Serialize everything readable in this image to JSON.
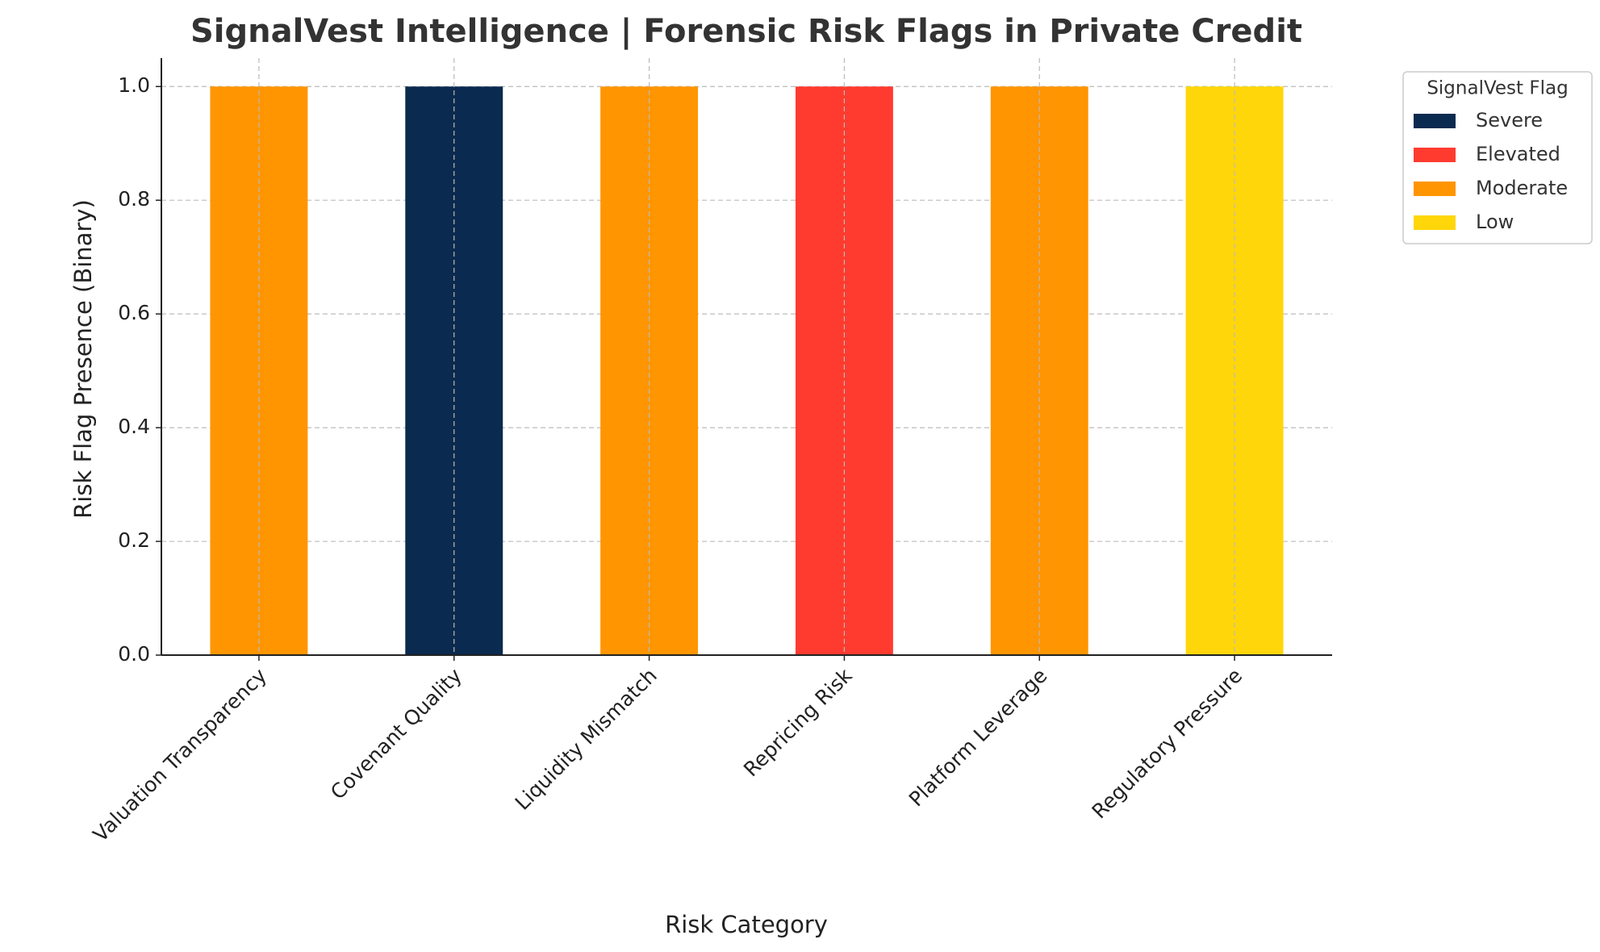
{
  "chart_data": {
    "type": "stacked_bar",
    "title": "SignalVest Intelligence | Forensic Risk Flags in Private Credit",
    "x_label": "Risk Category",
    "y_label": "Risk Flag Presence (Binary)",
    "categories": [
      "Valuation Transparency",
      "Covenant Quality",
      "Liquidity Mismatch",
      "Repricing Risk",
      "Platform Leverage",
      "Regulatory Pressure"
    ],
    "series": [
      {
        "name": "Severe",
        "color": "#0b2a4f",
        "values": [
          0,
          1,
          0,
          0,
          0,
          0
        ]
      },
      {
        "name": "Elevated",
        "color": "#ff3b30",
        "values": [
          0,
          0,
          0,
          1,
          0,
          0
        ]
      },
      {
        "name": "Moderate",
        "color": "#ff9500",
        "values": [
          1,
          0,
          1,
          0,
          1,
          0
        ]
      },
      {
        "name": "Low",
        "color": "#ffd60a",
        "values": [
          0,
          0,
          0,
          0,
          0,
          1
        ]
      }
    ],
    "ylim": [
      0,
      1.05
    ],
    "yticks": [
      {
        "value": 0,
        "label": "0.0"
      },
      {
        "value": 0.2,
        "label": "0.2"
      },
      {
        "value": 0.4,
        "label": "0.4"
      },
      {
        "value": 0.6,
        "label": "0.6"
      },
      {
        "value": 0.8,
        "label": "0.8"
      },
      {
        "value": 1,
        "label": "1.0"
      }
    ],
    "grid": true,
    "legend_title": "SignalVest Flag",
    "legend_position": "outside upper right"
  }
}
